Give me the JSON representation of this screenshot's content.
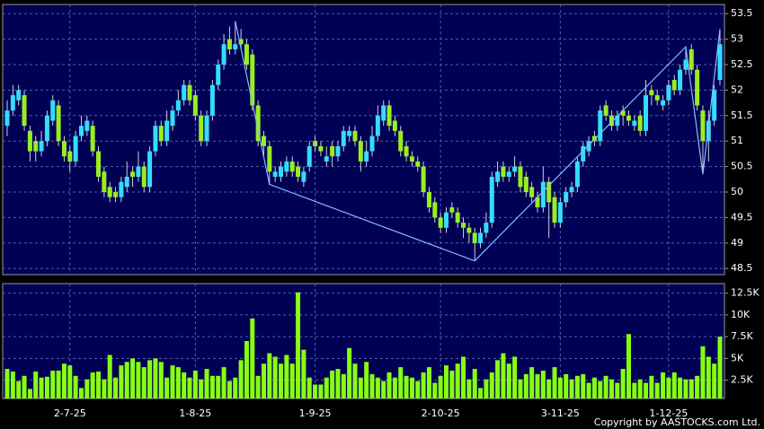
{
  "chart_data": {
    "type": "candlestick",
    "categories": [
      null,
      null,
      null,
      null,
      null,
      null,
      null,
      null,
      null,
      null,
      null,
      "2-7-25",
      null,
      null,
      null,
      null,
      null,
      null,
      null,
      null,
      null,
      null,
      null,
      null,
      null,
      null,
      null,
      null,
      null,
      null,
      null,
      null,
      null,
      "1-8-25",
      null,
      null,
      null,
      null,
      null,
      null,
      null,
      null,
      null,
      null,
      null,
      null,
      null,
      null,
      null,
      null,
      null,
      null,
      null,
      null,
      "1-9-25",
      null,
      null,
      null,
      null,
      null,
      null,
      null,
      null,
      null,
      null,
      null,
      null,
      null,
      null,
      null,
      null,
      null,
      null,
      null,
      null,
      null,
      "2-10-25",
      null,
      null,
      null,
      null,
      null,
      null,
      null,
      null,
      null,
      null,
      null,
      null,
      null,
      null,
      null,
      null,
      null,
      null,
      null,
      null,
      "3-11-25",
      null,
      null,
      null,
      null,
      null,
      null,
      null,
      null,
      null,
      null,
      null,
      null,
      null,
      null,
      null,
      null,
      null,
      null,
      "1-12-25",
      null,
      null,
      null,
      null,
      null,
      null,
      null,
      null,
      null
    ],
    "open": [
      51.3,
      51.6,
      51.8,
      51.9,
      51.2,
      51.0,
      50.8,
      51.0,
      51.4,
      51.7,
      51.0,
      50.8,
      50.6,
      51.1,
      51.2,
      51.3,
      50.8,
      50.4,
      50.1,
      50.0,
      49.9,
      50.1,
      50.4,
      50.3,
      50.5,
      50.1,
      50.8,
      51.3,
      51.0,
      51.3,
      51.6,
      51.8,
      52.1,
      51.9,
      51.5,
      51.0,
      51.5,
      52.1,
      52.5,
      53.0,
      52.8,
      53.0,
      52.9,
      52.7,
      51.7,
      51.1,
      50.9,
      50.3,
      50.3,
      50.4,
      50.6,
      50.5,
      50.2,
      50.5,
      51.0,
      50.9,
      50.6,
      50.9,
      50.7,
      50.9,
      51.1,
      51.2,
      51.0,
      50.6,
      50.8,
      51.1,
      51.4,
      51.7,
      51.4,
      51.2,
      50.9,
      50.7,
      50.6,
      50.5,
      50.0,
      49.8,
      49.5,
      49.3,
      49.7,
      49.6,
      49.4,
      49.3,
      49.2,
      49.0,
      49.2,
      49.4,
      50.2,
      50.5,
      50.3,
      50.4,
      50.5,
      50.3,
      50.1,
      49.9,
      49.7,
      50.2,
      49.9,
      49.4,
      49.8,
      50.0,
      50.1,
      50.6,
      50.8,
      51.1,
      51.0,
      51.7,
      51.5,
      51.3,
      51.6,
      51.5,
      51.3,
      51.5,
      51.2,
      52.0,
      51.9,
      51.7,
      51.8,
      52.2,
      52.0,
      52.4,
      52.8,
      52.4,
      51.6,
      51.0,
      51.4,
      52.2
    ],
    "high": [
      51.8,
      52.1,
      52.1,
      52.0,
      51.3,
      51.1,
      51.2,
      51.6,
      51.9,
      51.8,
      51.1,
      50.9,
      51.2,
      51.5,
      51.5,
      51.4,
      50.9,
      50.5,
      50.2,
      50.1,
      50.3,
      50.6,
      50.5,
      50.8,
      50.6,
      50.9,
      51.4,
      51.4,
      51.6,
      51.7,
      52.0,
      52.2,
      52.2,
      52.0,
      51.6,
      51.6,
      52.2,
      52.6,
      53.1,
      53.25,
      53.35,
      53.2,
      53.0,
      52.8,
      51.8,
      51.2,
      51.0,
      50.5,
      50.6,
      50.7,
      50.7,
      50.6,
      50.5,
      51.0,
      51.1,
      51.0,
      50.9,
      51.0,
      51.0,
      51.3,
      51.3,
      51.3,
      51.1,
      51.0,
      51.3,
      51.7,
      51.8,
      51.8,
      51.5,
      51.3,
      51.0,
      50.8,
      50.7,
      50.6,
      50.1,
      49.9,
      49.6,
      49.7,
      49.8,
      49.7,
      49.5,
      49.4,
      49.3,
      49.3,
      49.6,
      50.4,
      50.6,
      50.6,
      50.5,
      50.7,
      50.6,
      50.4,
      50.2,
      50.0,
      50.5,
      50.3,
      50.0,
      49.9,
      50.1,
      50.2,
      50.7,
      51.0,
      51.1,
      51.2,
      51.7,
      51.8,
      51.6,
      51.6,
      51.7,
      51.6,
      51.5,
      51.6,
      52.2,
      52.1,
      52.0,
      51.9,
      52.2,
      52.3,
      52.5,
      52.85,
      52.9,
      52.5,
      51.7,
      51.6,
      52.1,
      53.2
    ],
    "low": [
      51.1,
      51.5,
      51.7,
      51.2,
      50.6,
      50.6,
      50.7,
      50.9,
      51.3,
      50.9,
      50.6,
      50.4,
      50.5,
      51.0,
      51.1,
      50.7,
      50.2,
      49.9,
      49.8,
      49.8,
      49.8,
      50.0,
      50.1,
      50.2,
      50.0,
      50.0,
      50.7,
      50.9,
      50.9,
      51.2,
      51.5,
      51.7,
      51.7,
      51.4,
      50.9,
      50.9,
      51.4,
      52.0,
      52.4,
      52.7,
      52.7,
      52.8,
      52.4,
      51.6,
      50.9,
      50.7,
      50.15,
      50.2,
      50.2,
      50.3,
      50.3,
      50.2,
      50.1,
      50.4,
      50.8,
      50.7,
      50.5,
      50.5,
      50.6,
      50.8,
      51.0,
      50.9,
      50.4,
      50.5,
      50.7,
      51.0,
      51.3,
      51.2,
      51.1,
      50.7,
      50.6,
      50.5,
      50.4,
      49.9,
      49.6,
      49.4,
      49.2,
      49.2,
      49.5,
      49.3,
      49.1,
      49.0,
      48.65,
      48.9,
      49.1,
      49.3,
      50.1,
      50.2,
      50.2,
      50.3,
      50.0,
      49.9,
      49.8,
      49.6,
      49.6,
      49.1,
      49.3,
      49.3,
      49.7,
      49.9,
      50.0,
      50.5,
      50.7,
      50.9,
      50.9,
      51.4,
      51.2,
      51.2,
      51.3,
      51.3,
      51.2,
      51.1,
      51.1,
      51.7,
      51.7,
      51.6,
      51.7,
      51.9,
      51.9,
      52.3,
      52.3,
      51.6,
      50.35,
      50.6,
      51.3,
      52.1
    ],
    "close": [
      51.6,
      51.9,
      52.0,
      51.3,
      50.8,
      50.8,
      51.0,
      51.5,
      51.8,
      51.0,
      50.7,
      50.6,
      51.1,
      51.3,
      51.4,
      50.8,
      50.3,
      50.0,
      49.9,
      49.9,
      50.2,
      50.3,
      50.3,
      50.5,
      50.1,
      50.8,
      51.3,
      51.0,
      51.4,
      51.6,
      51.8,
      52.1,
      51.8,
      51.5,
      51.0,
      51.5,
      52.1,
      52.5,
      52.9,
      52.8,
      52.9,
      52.9,
      52.5,
      51.7,
      51.0,
      50.9,
      50.4,
      50.4,
      50.5,
      50.6,
      50.4,
      50.3,
      50.4,
      50.9,
      50.9,
      50.8,
      50.7,
      50.7,
      50.9,
      51.2,
      51.2,
      51.0,
      50.6,
      50.8,
      51.1,
      51.5,
      51.7,
      51.3,
      51.2,
      50.8,
      50.7,
      50.6,
      50.5,
      50.0,
      49.7,
      49.5,
      49.3,
      49.6,
      49.6,
      49.4,
      49.3,
      49.2,
      49.0,
      49.2,
      49.4,
      50.3,
      50.4,
      50.3,
      50.4,
      50.5,
      50.1,
      50.0,
      49.9,
      49.7,
      50.2,
      49.8,
      49.4,
      49.8,
      50.0,
      50.1,
      50.6,
      50.9,
      51.0,
      51.0,
      51.6,
      51.5,
      51.3,
      51.5,
      51.5,
      51.4,
      51.4,
      51.2,
      51.9,
      51.9,
      51.8,
      51.8,
      52.1,
      52.0,
      52.4,
      52.6,
      52.4,
      51.7,
      51.0,
      51.4,
      52.0,
      52.9
    ],
    "up_color": "#33ddff",
    "down_color": "#99ee22",
    "wick_color": "#d0d0d0",
    "ylim": [
      48.38,
      53.68
    ],
    "yticks": [
      48.5,
      49,
      49.5,
      50,
      50.5,
      51,
      51.5,
      52,
      52.5,
      53,
      53.5
    ],
    "grid": true,
    "zigzag": {
      "x": [
        40,
        46,
        82,
        119,
        122,
        125
      ],
      "values": [
        53.35,
        50.15,
        48.65,
        52.85,
        50.35,
        53.2
      ],
      "color": "#88bbff"
    },
    "volume": {
      "values": [
        3800,
        3500,
        2400,
        3000,
        1500,
        3500,
        2800,
        2900,
        3600,
        3600,
        4400,
        4200,
        3000,
        1600,
        2600,
        3400,
        3500,
        2600,
        5400,
        2800,
        4200,
        4600,
        5000,
        4600,
        4000,
        4800,
        5000,
        4600,
        2800,
        4200,
        4000,
        3400,
        2800,
        3600,
        2600,
        3800,
        3000,
        3000,
        4000,
        2400,
        2800,
        4800,
        7000,
        9600,
        3000,
        4400,
        5600,
        5200,
        4400,
        5400,
        4400,
        12600,
        6000,
        2800,
        2000,
        2000,
        2800,
        3600,
        3800,
        3200,
        6200,
        4400,
        2800,
        4600,
        3200,
        2800,
        2400,
        3400,
        2800,
        4000,
        3000,
        2800,
        2400,
        3400,
        4000,
        2200,
        3000,
        4200,
        3600,
        4400,
        5200,
        2600,
        3800,
        1600,
        2600,
        3400,
        4800,
        5600,
        4400,
        5200,
        2600,
        3200,
        4000,
        3200,
        3600,
        2600,
        4000,
        2800,
        3200,
        2600,
        3000,
        3200,
        2200,
        2800,
        2400,
        3000,
        2600,
        2200,
        3800,
        7800,
        2200,
        2600,
        2200,
        3000,
        2200,
        3400,
        2800,
        3400,
        2800,
        2600,
        2600,
        3000,
        6400,
        5200,
        4400,
        7500
      ],
      "color": "#88ff11",
      "ylim": [
        400,
        13600
      ],
      "yticks": [
        {
          "value": 2500,
          "label": "2.5K"
        },
        {
          "value": 5000,
          "label": "5K"
        },
        {
          "value": 7500,
          "label": "7.5K"
        },
        {
          "value": 10000,
          "label": "10K"
        },
        {
          "value": 12500,
          "label": "12.5K"
        }
      ]
    },
    "copyright": "Copyright by AASTOCKS.com Ltd."
  }
}
